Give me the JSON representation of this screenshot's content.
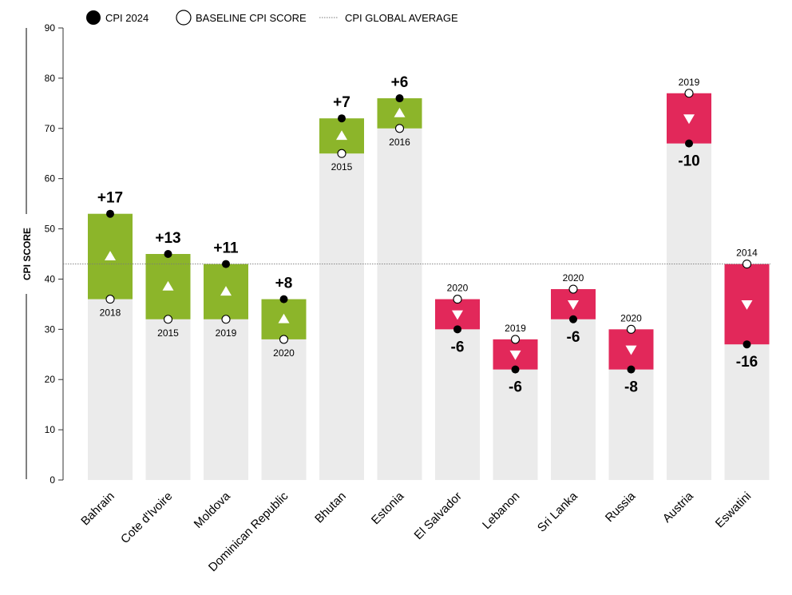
{
  "chart_data": {
    "type": "bar",
    "title": "",
    "xlabel": "",
    "ylabel": "CPI SCORE",
    "ylim": [
      0,
      90
    ],
    "yticks": [
      0,
      10,
      20,
      30,
      40,
      50,
      60,
      70,
      80,
      90
    ],
    "global_average": 43,
    "legend": [
      {
        "key": "cpi2024",
        "label": "CPI 2024"
      },
      {
        "key": "baseline",
        "label": "BASELINE CPI SCORE"
      },
      {
        "key": "average",
        "label": "CPI GLOBAL AVERAGE"
      }
    ],
    "categories": [
      "Bahrain",
      "Cote d'Ivoire",
      "Moldova",
      "Dominican Republic",
      "Bhutan",
      "Estonia",
      "El Salvador",
      "Lebanon",
      "Sri Lanka",
      "Russia",
      "Austria",
      "Eswatini"
    ],
    "series": [
      {
        "name": "CPI 2024",
        "values": [
          53,
          45,
          43,
          36,
          72,
          76,
          30,
          22,
          32,
          22,
          67,
          27
        ]
      },
      {
        "name": "Baseline CPI score",
        "values": [
          36,
          32,
          32,
          28,
          65,
          70,
          36,
          28,
          38,
          30,
          77,
          43
        ]
      }
    ],
    "baseline_years": [
      "2018",
      "2015",
      "2019",
      "2020",
      "2015",
      "2016",
      "2020",
      "2019",
      "2020",
      "2020",
      "2019",
      "2014"
    ],
    "change_labels": [
      "+17",
      "+13",
      "+11",
      "+8",
      "+7",
      "+6",
      "-6",
      "-6",
      "-6",
      "-8",
      "-10",
      "-16"
    ],
    "colors": {
      "improved": "#8cb52a",
      "declined": "#e2285a",
      "base_bar": "#ebebeb",
      "text": "#000000",
      "axis": "#333333",
      "average_line": "#7a7a7a"
    }
  }
}
